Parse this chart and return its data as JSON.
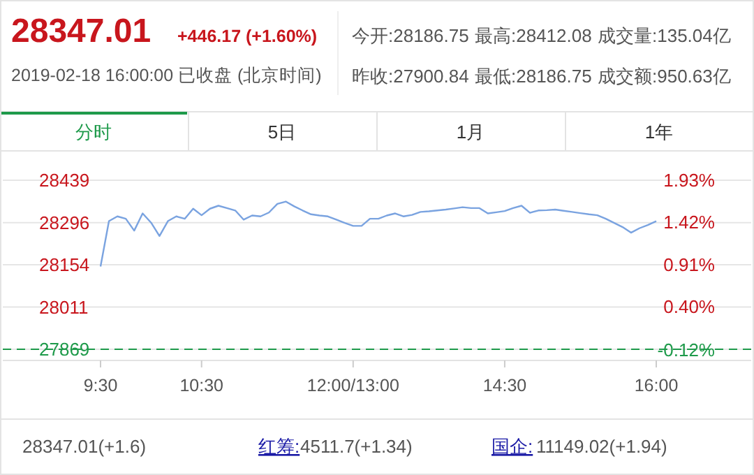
{
  "chart_data": {
    "type": "line",
    "title": "28347.01",
    "subtitle": "+446.17 (+1.60%)",
    "annotations": [
      "2019-02-18 16:00:00  已收盘  (北京时间)",
      "今开:28186.75",
      "最高:28412.08",
      "成交量:135.04亿",
      "昨收:27900.84",
      "最低:28186.75",
      "成交额:950.63亿",
      "分时",
      "5日",
      "1月",
      "1年",
      "28347.01(+1.6)",
      "红筹:",
      "4511.7(+1.34)",
      "国企:",
      "11149.02(+1.94)"
    ],
    "categories": [
      "9:30",
      null,
      null,
      null,
      null,
      null,
      null,
      null,
      null,
      null,
      null,
      null,
      "10:30",
      null,
      null,
      null,
      null,
      null,
      null,
      null,
      null,
      null,
      null,
      null,
      null,
      null,
      null,
      null,
      null,
      null,
      "12:00/13:00",
      null,
      null,
      null,
      null,
      null,
      null,
      null,
      null,
      null,
      null,
      null,
      null,
      null,
      null,
      null,
      null,
      null,
      "14:30",
      null,
      null,
      null,
      null,
      null,
      null,
      null,
      null,
      null,
      null,
      null,
      null,
      null,
      null,
      null,
      null,
      null,
      "16:00"
    ],
    "series": [
      {
        "color": "#7aa3e0",
        "values": [
          28148,
          28301,
          28317,
          28309,
          28269,
          28327,
          28296,
          28251,
          28301,
          28317,
          28309,
          28343,
          28321,
          28343,
          28353,
          28345,
          28337,
          28306,
          28320,
          28317,
          28330,
          28359,
          28367,
          28351,
          28337,
          28324,
          28320,
          28317,
          28306,
          28295,
          28285,
          28285,
          28309,
          28309,
          28320,
          28327,
          28317,
          28322,
          28332,
          28334,
          28337,
          28340,
          28344,
          28348,
          28345,
          28345,
          28327,
          28331,
          28335,
          28345,
          28353,
          28329,
          28337,
          28338,
          28340,
          28336,
          28332,
          28328,
          28324,
          28321,
          28309,
          28295,
          28281,
          28262,
          28277,
          28288,
          28301
        ]
      }
    ],
    "ylim": [
      27831,
      28538
    ],
    "yticks": [
      28439,
      28296,
      28154,
      28011,
      27869
    ],
    "y2lim": [
      -0.25,
      2.28
    ],
    "y2ticks": [
      {
        "value": 1.93,
        "label": "1.93%"
      },
      {
        "value": 1.42,
        "label": "1.42%"
      },
      {
        "value": 0.91,
        "label": "0.91%"
      },
      {
        "value": 0.4,
        "label": "0.40%"
      },
      {
        "value": -0.12,
        "label": "-0.12%"
      }
    ],
    "ref_lines": [
      {
        "axis": "y",
        "value": 27869,
        "color": "#1e9a4a",
        "line_style": "dashed"
      }
    ],
    "grid": "y",
    "marker": "none",
    "line_style": "solid"
  }
}
